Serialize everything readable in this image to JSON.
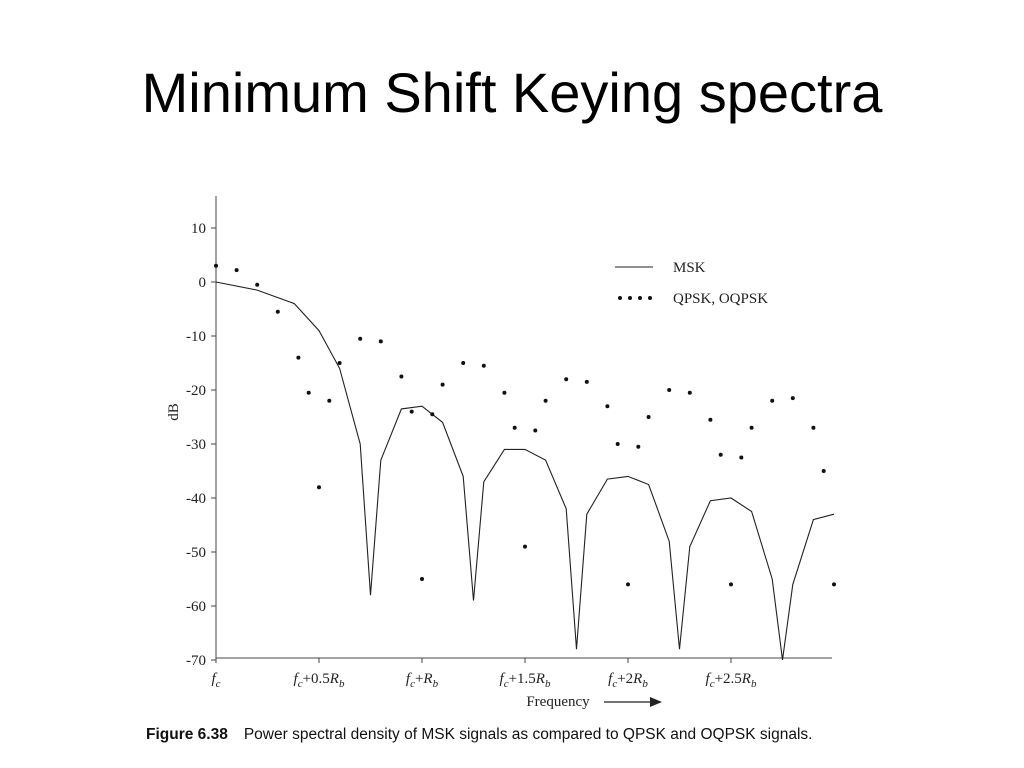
{
  "slide": {
    "title": "Minimum Shift Keying spectra",
    "caption_number": "Figure 6.38",
    "caption_text": "Power spectral density of MSK signals as compared to QPSK and OQPSK signals."
  },
  "chart_data": {
    "type": "line",
    "title": "",
    "xlabel": "Frequency",
    "ylabel": "dB",
    "x_units": "offset from f_c in multiples of R_b",
    "xlim": [
      0,
      3.0
    ],
    "ylim": [
      -70,
      12
    ],
    "yticks": [
      10,
      0,
      -10,
      -20,
      -30,
      -40,
      -50,
      -60,
      -70
    ],
    "xticks": [
      {
        "x": 0,
        "label": "fc"
      },
      {
        "x": 0.5,
        "label": "fc+0.5Rb"
      },
      {
        "x": 1.0,
        "label": "fc+Rb"
      },
      {
        "x": 1.5,
        "label": "fc+1.5Rb"
      },
      {
        "x": 2.0,
        "label": "fc+2Rb"
      },
      {
        "x": 2.5,
        "label": "fc+2.5Rb"
      }
    ],
    "legend": {
      "position": "top-right"
    },
    "grid": false,
    "series": [
      {
        "name": "MSK",
        "style": "solid",
        "x": [
          0,
          0.2,
          0.38,
          0.5,
          0.6,
          0.7,
          0.75,
          0.8,
          0.9,
          1.0,
          1.1,
          1.2,
          1.25,
          1.3,
          1.4,
          1.5,
          1.6,
          1.7,
          1.75,
          1.8,
          1.9,
          2.0,
          2.1,
          2.2,
          2.25,
          2.3,
          2.4,
          2.5,
          2.6,
          2.7,
          2.75,
          2.8,
          2.9,
          3.0
        ],
        "y": [
          0,
          -1.5,
          -4,
          -9,
          -16,
          -30,
          -58,
          -33,
          -23.5,
          -23,
          -26,
          -36,
          -59,
          -37,
          -31,
          -31,
          -33,
          -42,
          -68,
          -43,
          -36.5,
          -36,
          -37.5,
          -48,
          -68,
          -49,
          -40.5,
          -40,
          -42.5,
          -55,
          -70,
          -56,
          -44,
          -43
        ]
      },
      {
        "name": "QPSK, OQPSK",
        "style": "dotted",
        "x": [
          0,
          0.1,
          0.2,
          0.3,
          0.4,
          0.45,
          0.5,
          0.55,
          0.6,
          0.7,
          0.8,
          0.9,
          0.95,
          1.0,
          1.05,
          1.1,
          1.2,
          1.3,
          1.4,
          1.45,
          1.5,
          1.55,
          1.6,
          1.7,
          1.8,
          1.9,
          1.95,
          2.0,
          2.05,
          2.1,
          2.2,
          2.3,
          2.4,
          2.45,
          2.5,
          2.55,
          2.6,
          2.7,
          2.8,
          2.9,
          2.95,
          3.0
        ],
        "y": [
          3,
          2.2,
          -0.5,
          -5.5,
          -14,
          -20.5,
          -38,
          -22,
          -15,
          -10.5,
          -11,
          -17.5,
          -24,
          -55,
          -24.5,
          -19,
          -15,
          -15.5,
          -20.5,
          -27,
          -49,
          -27.5,
          -22,
          -18,
          -18.5,
          -23,
          -30,
          -56,
          -30.5,
          -25,
          -20,
          -20.5,
          -25.5,
          -32,
          -56,
          -32.5,
          -27,
          -22,
          -21.5,
          -27,
          -35,
          -56
        ]
      }
    ]
  }
}
